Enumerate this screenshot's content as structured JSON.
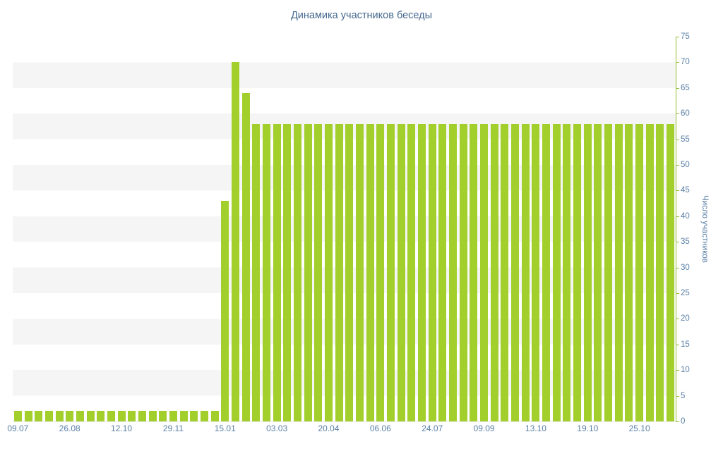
{
  "chart_data": {
    "type": "bar",
    "title": "Динамика участников беседы",
    "xlabel": "",
    "ylabel": "Число участников",
    "ylim": [
      0,
      75
    ],
    "grid": "striped-horizontal-bands",
    "legend": "none",
    "y_axis_position": "right",
    "y_ticks": [
      0,
      5,
      10,
      15,
      20,
      25,
      30,
      35,
      40,
      45,
      50,
      55,
      60,
      65,
      70,
      75
    ],
    "x_tick_labels": [
      "09.07",
      "26.08",
      "12.10",
      "29.11",
      "15.01",
      "03.03",
      "20.04",
      "06.06",
      "24.07",
      "09.09",
      "13.10",
      "19.10",
      "25.10"
    ],
    "x_tick_every_n_bars": 5,
    "values": [
      2,
      2,
      2,
      2,
      2,
      2,
      2,
      2,
      2,
      2,
      2,
      2,
      2,
      2,
      2,
      2,
      2,
      2,
      2,
      2,
      43,
      70,
      64,
      58,
      58,
      58,
      58,
      58,
      58,
      58,
      58,
      58,
      58,
      58,
      58,
      58,
      58,
      58,
      58,
      58,
      58,
      58,
      58,
      58,
      58,
      58,
      58,
      58,
      58,
      58,
      58,
      58,
      58,
      58,
      58,
      58,
      58,
      58,
      58,
      58,
      58,
      58,
      58,
      58
    ],
    "colors": {
      "bar": "#a3cf2c",
      "axis_line": "#94bf36",
      "axis_text": "#5b80a6",
      "title": "#45688e",
      "stripe": "#f5f5f5"
    }
  }
}
